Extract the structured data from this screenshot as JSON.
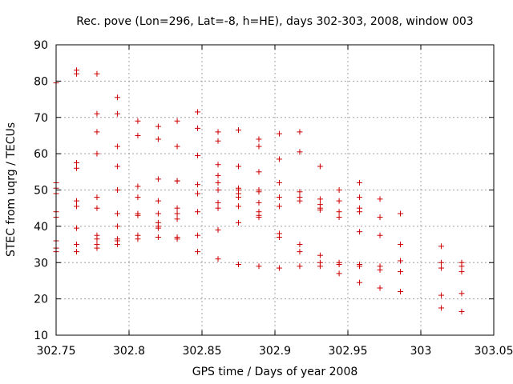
{
  "chart_data": {
    "type": "scatter",
    "title": "Rec. pove (Lon=296, Lat=-8, h=HE), days 302-303, 2008, window 003",
    "xlabel": "GPS time / Days of year 2008",
    "ylabel": "STEC from uqrg / TECUs",
    "xlim": [
      302.75,
      303.05
    ],
    "ylim": [
      10,
      90
    ],
    "xticks": [
      "302.75",
      "302.8",
      "302.85",
      "302.9",
      "302.95",
      "303",
      "303.05"
    ],
    "yticks": [
      "10",
      "20",
      "30",
      "40",
      "50",
      "60",
      "70",
      "80",
      "90"
    ],
    "grid": true,
    "marker": "plus",
    "colors": {
      "points": "#cc0000",
      "grid": "#a0a0a0",
      "axes": "#000000"
    },
    "series": [
      {
        "points": [
          [
            302.75,
            79.5
          ],
          [
            302.75,
            52.0
          ],
          [
            302.75,
            50.5
          ],
          [
            302.75,
            49.0
          ],
          [
            302.75,
            44.0
          ],
          [
            302.75,
            42.5
          ],
          [
            302.75,
            36.0
          ],
          [
            302.75,
            34.0
          ],
          [
            302.75,
            33.0
          ],
          [
            302.764,
            83.0
          ],
          [
            302.764,
            82.0
          ],
          [
            302.764,
            57.5
          ],
          [
            302.764,
            56.0
          ],
          [
            302.764,
            47.0
          ],
          [
            302.764,
            45.5
          ],
          [
            302.764,
            39.5
          ],
          [
            302.764,
            35.0
          ],
          [
            302.764,
            33.0
          ],
          [
            302.778,
            82.0
          ],
          [
            302.778,
            71.0
          ],
          [
            302.778,
            66.0
          ],
          [
            302.778,
            60.0
          ],
          [
            302.778,
            48.0
          ],
          [
            302.778,
            45.0
          ],
          [
            302.778,
            37.5
          ],
          [
            302.778,
            36.5
          ],
          [
            302.778,
            35.0
          ],
          [
            302.778,
            34.0
          ],
          [
            302.792,
            75.5
          ],
          [
            302.792,
            71.0
          ],
          [
            302.792,
            62.0
          ],
          [
            302.792,
            56.5
          ],
          [
            302.792,
            50.0
          ],
          [
            302.792,
            43.5
          ],
          [
            302.792,
            40.0
          ],
          [
            302.792,
            36.5
          ],
          [
            302.792,
            36.0
          ],
          [
            302.792,
            35.0
          ],
          [
            302.806,
            69.0
          ],
          [
            302.806,
            65.0
          ],
          [
            302.806,
            51.0
          ],
          [
            302.806,
            48.0
          ],
          [
            302.806,
            43.5
          ],
          [
            302.806,
            43.0
          ],
          [
            302.806,
            37.5
          ],
          [
            302.806,
            36.5
          ],
          [
            302.82,
            67.5
          ],
          [
            302.82,
            64.0
          ],
          [
            302.82,
            53.0
          ],
          [
            302.82,
            47.0
          ],
          [
            302.82,
            43.5
          ],
          [
            302.82,
            41.0
          ],
          [
            302.82,
            40.0
          ],
          [
            302.82,
            39.5
          ],
          [
            302.82,
            37.0
          ],
          [
            302.833,
            69.0
          ],
          [
            302.833,
            62.0
          ],
          [
            302.833,
            52.5
          ],
          [
            302.833,
            52.5
          ],
          [
            302.833,
            45.0
          ],
          [
            302.833,
            43.5
          ],
          [
            302.833,
            42.0
          ],
          [
            302.833,
            37.0
          ],
          [
            302.833,
            36.5
          ],
          [
            302.847,
            71.5
          ],
          [
            302.847,
            67.0
          ],
          [
            302.847,
            59.5
          ],
          [
            302.847,
            51.5
          ],
          [
            302.847,
            49.0
          ],
          [
            302.847,
            44.0
          ],
          [
            302.847,
            37.5
          ],
          [
            302.847,
            33.0
          ],
          [
            302.861,
            66.0
          ],
          [
            302.861,
            63.5
          ],
          [
            302.861,
            57.0
          ],
          [
            302.861,
            54.0
          ],
          [
            302.861,
            52.0
          ],
          [
            302.861,
            50.0
          ],
          [
            302.861,
            46.5
          ],
          [
            302.861,
            45.0
          ],
          [
            302.861,
            39.0
          ],
          [
            302.861,
            31.0
          ],
          [
            302.875,
            66.5
          ],
          [
            302.875,
            56.5
          ],
          [
            302.875,
            50.5
          ],
          [
            302.875,
            50.0
          ],
          [
            302.875,
            49.0
          ],
          [
            302.875,
            48.0
          ],
          [
            302.875,
            45.5
          ],
          [
            302.875,
            41.0
          ],
          [
            302.875,
            29.5
          ],
          [
            302.889,
            64.0
          ],
          [
            302.889,
            62.0
          ],
          [
            302.889,
            55.0
          ],
          [
            302.889,
            50.0
          ],
          [
            302.889,
            49.5
          ],
          [
            302.889,
            46.5
          ],
          [
            302.889,
            44.0
          ],
          [
            302.889,
            43.0
          ],
          [
            302.889,
            42.5
          ],
          [
            302.889,
            29.0
          ],
          [
            302.903,
            65.5
          ],
          [
            302.903,
            58.5
          ],
          [
            302.903,
            52.0
          ],
          [
            302.903,
            48.0
          ],
          [
            302.903,
            45.5
          ],
          [
            302.903,
            38.0
          ],
          [
            302.903,
            37.0
          ],
          [
            302.903,
            28.5
          ],
          [
            302.917,
            66.0
          ],
          [
            302.917,
            60.5
          ],
          [
            302.917,
            49.5
          ],
          [
            302.917,
            48.0
          ],
          [
            302.917,
            47.0
          ],
          [
            302.917,
            35.0
          ],
          [
            302.917,
            33.0
          ],
          [
            302.917,
            29.0
          ],
          [
            302.931,
            56.5
          ],
          [
            302.931,
            47.5
          ],
          [
            302.931,
            46.0
          ],
          [
            302.931,
            45.0
          ],
          [
            302.931,
            44.5
          ],
          [
            302.931,
            32.0
          ],
          [
            302.931,
            30.0
          ],
          [
            302.931,
            29.0
          ],
          [
            302.944,
            50.0
          ],
          [
            302.944,
            47.0
          ],
          [
            302.944,
            44.0
          ],
          [
            302.944,
            42.5
          ],
          [
            302.944,
            30.0
          ],
          [
            302.944,
            29.5
          ],
          [
            302.944,
            27.0
          ],
          [
            302.958,
            52.0
          ],
          [
            302.958,
            48.0
          ],
          [
            302.958,
            45.0
          ],
          [
            302.958,
            44.0
          ],
          [
            302.958,
            38.5
          ],
          [
            302.958,
            29.5
          ],
          [
            302.958,
            29.0
          ],
          [
            302.958,
            24.5
          ],
          [
            302.972,
            47.5
          ],
          [
            302.972,
            42.5
          ],
          [
            302.972,
            37.5
          ],
          [
            302.972,
            29.0
          ],
          [
            302.972,
            28.0
          ],
          [
            302.972,
            23.0
          ],
          [
            302.986,
            43.5
          ],
          [
            302.986,
            43.5
          ],
          [
            302.986,
            35.0
          ],
          [
            302.986,
            30.5
          ],
          [
            302.986,
            27.5
          ],
          [
            302.986,
            22.0
          ],
          [
            303.014,
            34.5
          ],
          [
            303.014,
            30.0
          ],
          [
            303.014,
            28.5
          ],
          [
            303.014,
            21.0
          ],
          [
            303.014,
            17.5
          ],
          [
            303.028,
            30.0
          ],
          [
            303.028,
            29.0
          ],
          [
            303.028,
            27.5
          ],
          [
            303.028,
            21.5
          ],
          [
            303.028,
            16.5
          ]
        ]
      }
    ]
  }
}
